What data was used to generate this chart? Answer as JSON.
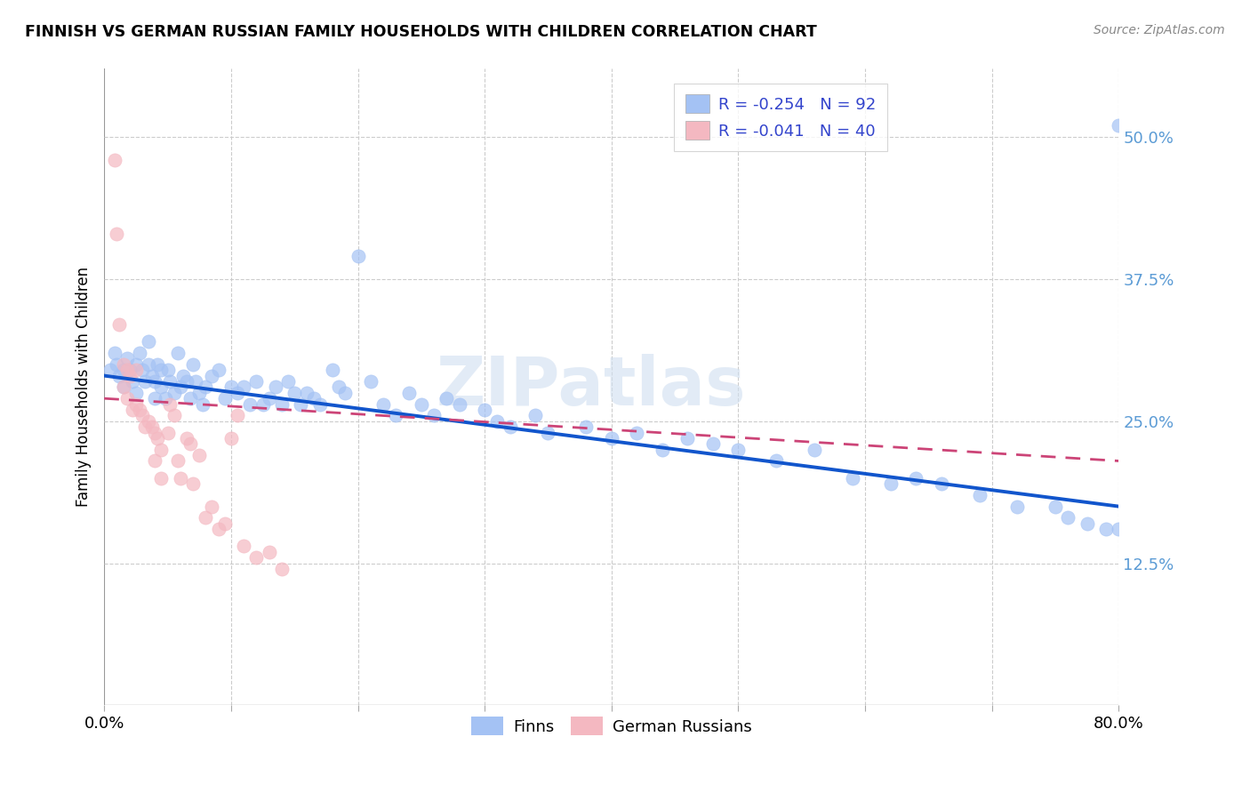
{
  "title": "FINNISH VS GERMAN RUSSIAN FAMILY HOUSEHOLDS WITH CHILDREN CORRELATION CHART",
  "source": "Source: ZipAtlas.com",
  "ylabel": "Family Households with Children",
  "ytick_labels": [
    "12.5%",
    "25.0%",
    "37.5%",
    "50.0%"
  ],
  "ytick_values": [
    0.125,
    0.25,
    0.375,
    0.5
  ],
  "xlim": [
    0.0,
    0.8
  ],
  "ylim": [
    0.0,
    0.56
  ],
  "legend_blue_R": "-0.254",
  "legend_blue_N": "92",
  "legend_pink_R": "-0.041",
  "legend_pink_N": "40",
  "blue_color": "#a4c2f4",
  "pink_color": "#f4b8c1",
  "trendline_blue_color": "#1155cc",
  "trendline_pink_color": "#cc4477",
  "watermark": "ZIPatlas",
  "finns_label": "Finns",
  "german_russians_label": "German Russians",
  "blue_points_x": [
    0.005,
    0.008,
    0.01,
    0.012,
    0.015,
    0.015,
    0.018,
    0.02,
    0.022,
    0.025,
    0.025,
    0.028,
    0.03,
    0.032,
    0.035,
    0.035,
    0.038,
    0.04,
    0.04,
    0.042,
    0.045,
    0.045,
    0.048,
    0.05,
    0.052,
    0.055,
    0.058,
    0.06,
    0.062,
    0.065,
    0.068,
    0.07,
    0.072,
    0.075,
    0.078,
    0.08,
    0.085,
    0.09,
    0.095,
    0.1,
    0.105,
    0.11,
    0.115,
    0.12,
    0.125,
    0.13,
    0.135,
    0.14,
    0.145,
    0.15,
    0.155,
    0.16,
    0.165,
    0.17,
    0.18,
    0.185,
    0.19,
    0.2,
    0.21,
    0.22,
    0.23,
    0.24,
    0.25,
    0.26,
    0.27,
    0.28,
    0.3,
    0.31,
    0.32,
    0.34,
    0.35,
    0.38,
    0.4,
    0.42,
    0.44,
    0.46,
    0.48,
    0.5,
    0.53,
    0.56,
    0.59,
    0.62,
    0.64,
    0.66,
    0.69,
    0.72,
    0.75,
    0.76,
    0.775,
    0.79,
    0.8,
    0.8
  ],
  "blue_points_y": [
    0.295,
    0.31,
    0.3,
    0.29,
    0.295,
    0.28,
    0.305,
    0.295,
    0.285,
    0.3,
    0.275,
    0.31,
    0.295,
    0.285,
    0.3,
    0.32,
    0.29,
    0.285,
    0.27,
    0.3,
    0.295,
    0.28,
    0.27,
    0.295,
    0.285,
    0.275,
    0.31,
    0.28,
    0.29,
    0.285,
    0.27,
    0.3,
    0.285,
    0.275,
    0.265,
    0.28,
    0.29,
    0.295,
    0.27,
    0.28,
    0.275,
    0.28,
    0.265,
    0.285,
    0.265,
    0.27,
    0.28,
    0.265,
    0.285,
    0.275,
    0.265,
    0.275,
    0.27,
    0.265,
    0.295,
    0.28,
    0.275,
    0.395,
    0.285,
    0.265,
    0.255,
    0.275,
    0.265,
    0.255,
    0.27,
    0.265,
    0.26,
    0.25,
    0.245,
    0.255,
    0.24,
    0.245,
    0.235,
    0.24,
    0.225,
    0.235,
    0.23,
    0.225,
    0.215,
    0.225,
    0.2,
    0.195,
    0.2,
    0.195,
    0.185,
    0.175,
    0.175,
    0.165,
    0.16,
    0.155,
    0.51,
    0.155
  ],
  "pink_points_x": [
    0.008,
    0.01,
    0.012,
    0.015,
    0.015,
    0.018,
    0.018,
    0.02,
    0.022,
    0.025,
    0.025,
    0.028,
    0.03,
    0.032,
    0.035,
    0.038,
    0.04,
    0.04,
    0.042,
    0.045,
    0.045,
    0.05,
    0.052,
    0.055,
    0.058,
    0.06,
    0.065,
    0.068,
    0.07,
    0.075,
    0.08,
    0.085,
    0.09,
    0.095,
    0.1,
    0.105,
    0.11,
    0.12,
    0.13,
    0.14
  ],
  "pink_points_y": [
    0.48,
    0.415,
    0.335,
    0.3,
    0.28,
    0.295,
    0.27,
    0.29,
    0.26,
    0.295,
    0.265,
    0.26,
    0.255,
    0.245,
    0.25,
    0.245,
    0.24,
    0.215,
    0.235,
    0.225,
    0.2,
    0.24,
    0.265,
    0.255,
    0.215,
    0.2,
    0.235,
    0.23,
    0.195,
    0.22,
    0.165,
    0.175,
    0.155,
    0.16,
    0.235,
    0.255,
    0.14,
    0.13,
    0.135,
    0.12
  ],
  "trendline_blue_x0": 0.0,
  "trendline_blue_y0": 0.29,
  "trendline_blue_x1": 0.8,
  "trendline_blue_y1": 0.175,
  "trendline_pink_x0": 0.0,
  "trendline_pink_y0": 0.27,
  "trendline_pink_x1": 0.8,
  "trendline_pink_y1": 0.215
}
